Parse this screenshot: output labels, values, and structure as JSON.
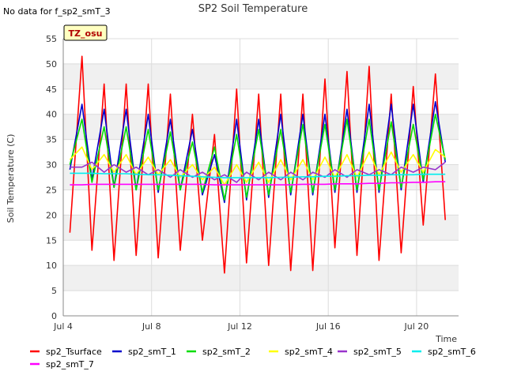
{
  "header": {
    "title": "SP2 Soil Temperature",
    "no_data_note": "No data for f_sp2_smT_3",
    "tz_badge": "TZ_osu"
  },
  "colors": {
    "band": "#f0f0f0",
    "grid": "#dcdcdc",
    "tz_badge_bg": "#ffffc0"
  },
  "chart_data": {
    "type": "line",
    "title": "SP2 Soil Temperature",
    "xlabel": "Time",
    "ylabel": "Soil Temperature (C)",
    "xlim": [
      "Jul 4",
      "Jul 22"
    ],
    "x_unit": "day of July",
    "xlim_days": [
      4.0,
      21.9
    ],
    "ylim": [
      0,
      55
    ],
    "yticks": [
      0,
      5,
      10,
      15,
      20,
      25,
      30,
      35,
      40,
      45,
      50,
      55
    ],
    "xticks": [
      {
        "label": "Jul 4",
        "day": 4
      },
      {
        "label": "Jul 8",
        "day": 8
      },
      {
        "label": "Jul 12",
        "day": 12
      },
      {
        "label": "Jul 16",
        "day": 16
      },
      {
        "label": "Jul 20",
        "day": 20
      }
    ],
    "grid": true,
    "legend_position": "bottom",
    "x_days": [
      4.3,
      4.85,
      5.3,
      5.85,
      6.3,
      6.85,
      7.3,
      7.85,
      8.3,
      8.85,
      9.3,
      9.85,
      10.3,
      10.85,
      11.3,
      11.85,
      12.3,
      12.85,
      13.3,
      13.85,
      14.3,
      14.85,
      15.3,
      15.85,
      16.3,
      16.85,
      17.3,
      17.85,
      18.3,
      18.85,
      19.3,
      19.85,
      20.3,
      20.85,
      21.3
    ],
    "series": [
      {
        "name": "sp2_Tsurface",
        "color": "#ff0000",
        "values": [
          16.5,
          51.5,
          13.0,
          46.0,
          11.0,
          46.0,
          12.0,
          46.0,
          11.5,
          44.0,
          13.0,
          40.0,
          15.0,
          36.0,
          8.5,
          45.0,
          10.5,
          44.0,
          10.0,
          44.0,
          9.0,
          44.0,
          9.0,
          47.0,
          13.5,
          48.5,
          12.0,
          49.5,
          11.0,
          44.0,
          12.5,
          45.5,
          18.0,
          48.0,
          19.0
        ]
      },
      {
        "name": "sp2_smT_1",
        "color": "#0000cc",
        "values": [
          29.0,
          42.0,
          27.0,
          41.0,
          25.5,
          41.0,
          25.0,
          40.0,
          24.5,
          39.0,
          25.0,
          37.0,
          24.0,
          32.0,
          22.5,
          39.0,
          23.0,
          39.0,
          23.5,
          40.0,
          24.0,
          40.0,
          24.0,
          40.0,
          24.5,
          41.0,
          24.5,
          42.0,
          24.5,
          42.0,
          25.0,
          42.0,
          26.5,
          42.5,
          30.5
        ]
      },
      {
        "name": "sp2_smT_2",
        "color": "#00dd00",
        "values": [
          30.0,
          39.0,
          26.5,
          37.5,
          25.5,
          37.5,
          25.0,
          37.0,
          25.0,
          36.5,
          25.0,
          34.5,
          24.5,
          33.5,
          23.0,
          36.0,
          23.5,
          37.0,
          24.0,
          37.0,
          24.5,
          38.0,
          24.5,
          38.0,
          25.0,
          39.0,
          25.0,
          39.0,
          25.0,
          38.5,
          25.5,
          38.0,
          27.0,
          40.0,
          31.0
        ]
      },
      {
        "name": "sp2_smT_4",
        "color": "#ffff00",
        "values": [
          31.0,
          33.5,
          29.0,
          32.0,
          28.5,
          32.0,
          28.0,
          31.5,
          28.0,
          31.0,
          27.5,
          30.0,
          27.0,
          29.5,
          26.0,
          30.0,
          26.5,
          30.5,
          26.5,
          31.0,
          27.0,
          31.0,
          27.0,
          31.5,
          27.5,
          32.0,
          27.5,
          32.5,
          28.0,
          32.5,
          28.5,
          32.0,
          28.5,
          33.0,
          31.5
        ]
      },
      {
        "name": "sp2_smT_5",
        "color": "#9933cc",
        "values": [
          29.5,
          29.5,
          30.5,
          28.5,
          30.0,
          28.5,
          29.5,
          28.0,
          29.0,
          27.5,
          29.0,
          27.5,
          28.5,
          27.0,
          28.0,
          26.5,
          28.5,
          27.0,
          28.5,
          27.0,
          28.5,
          27.0,
          28.5,
          27.5,
          29.0,
          27.5,
          29.0,
          28.0,
          29.0,
          28.0,
          29.5,
          28.5,
          29.5,
          29.0,
          30.5
        ]
      },
      {
        "name": "sp2_smT_6",
        "color": "#00eeee",
        "values": [
          28.3,
          28.3,
          28.3,
          28.2,
          28.2,
          28.2,
          28.1,
          28.0,
          28.0,
          27.9,
          27.8,
          27.7,
          27.6,
          27.5,
          27.4,
          27.4,
          27.4,
          27.4,
          27.4,
          27.5,
          27.5,
          27.6,
          27.6,
          27.7,
          27.7,
          27.8,
          27.8,
          27.9,
          27.9,
          28.0,
          28.0,
          28.0,
          28.1,
          28.1,
          28.1
        ]
      },
      {
        "name": "sp2_smT_7",
        "color": "#ff00ff",
        "values": [
          26.0,
          26.0,
          26.1,
          26.1,
          26.1,
          26.1,
          26.1,
          26.1,
          26.1,
          26.1,
          26.1,
          26.1,
          26.1,
          26.0,
          26.0,
          26.0,
          26.0,
          26.0,
          26.0,
          26.0,
          26.0,
          26.1,
          26.1,
          26.1,
          26.2,
          26.2,
          26.2,
          26.3,
          26.3,
          26.4,
          26.4,
          26.5,
          26.5,
          26.6,
          26.6
        ]
      }
    ]
  }
}
